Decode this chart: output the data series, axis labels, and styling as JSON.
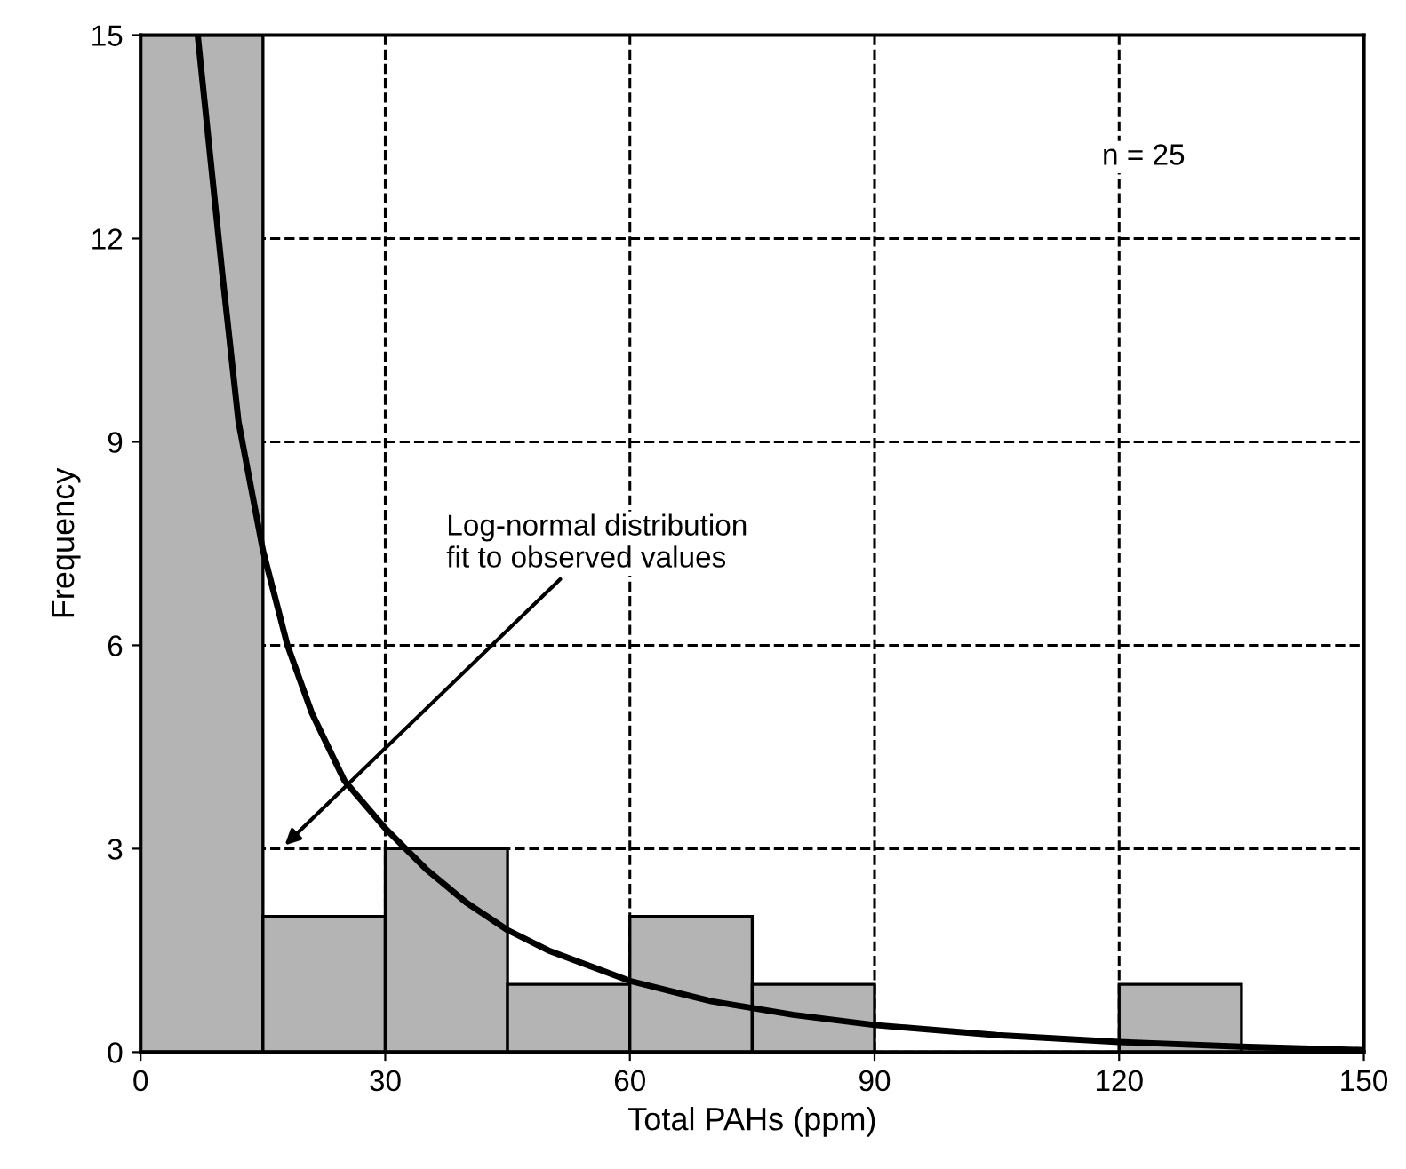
{
  "chart_data": {
    "type": "histogram",
    "xlabel": "Total PAHs (ppm)",
    "ylabel": "Frequency",
    "bins": [
      0,
      15,
      30,
      45,
      60,
      75,
      90,
      105,
      120,
      135,
      150
    ],
    "series": [
      {
        "values": [
          15,
          2,
          3,
          1,
          2,
          1,
          0,
          0,
          1,
          0
        ],
        "color": "#b4b4b4"
      },
      {
        "type": "line",
        "x": [
          7,
          10,
          12,
          15,
          18,
          21,
          25,
          30,
          35,
          40,
          45,
          50,
          60,
          70,
          80,
          90,
          105,
          120,
          135,
          150
        ],
        "values": [
          15,
          11.5,
          9.3,
          7.4,
          6,
          5,
          4,
          3.3,
          2.7,
          2.2,
          1.8,
          1.5,
          1.05,
          0.75,
          0.55,
          0.4,
          0.25,
          0.15,
          0.08,
          0.03
        ],
        "color": "#000000"
      }
    ],
    "xlim": [
      0,
      150
    ],
    "ylim": [
      0,
      15
    ],
    "xticks": [
      0,
      30,
      60,
      90,
      120,
      150
    ],
    "yticks": [
      0,
      3,
      6,
      9,
      12,
      15
    ],
    "grid": true,
    "annotations": [
      "Log-normal distribution\nfit to observed values",
      "n = 25"
    ]
  }
}
